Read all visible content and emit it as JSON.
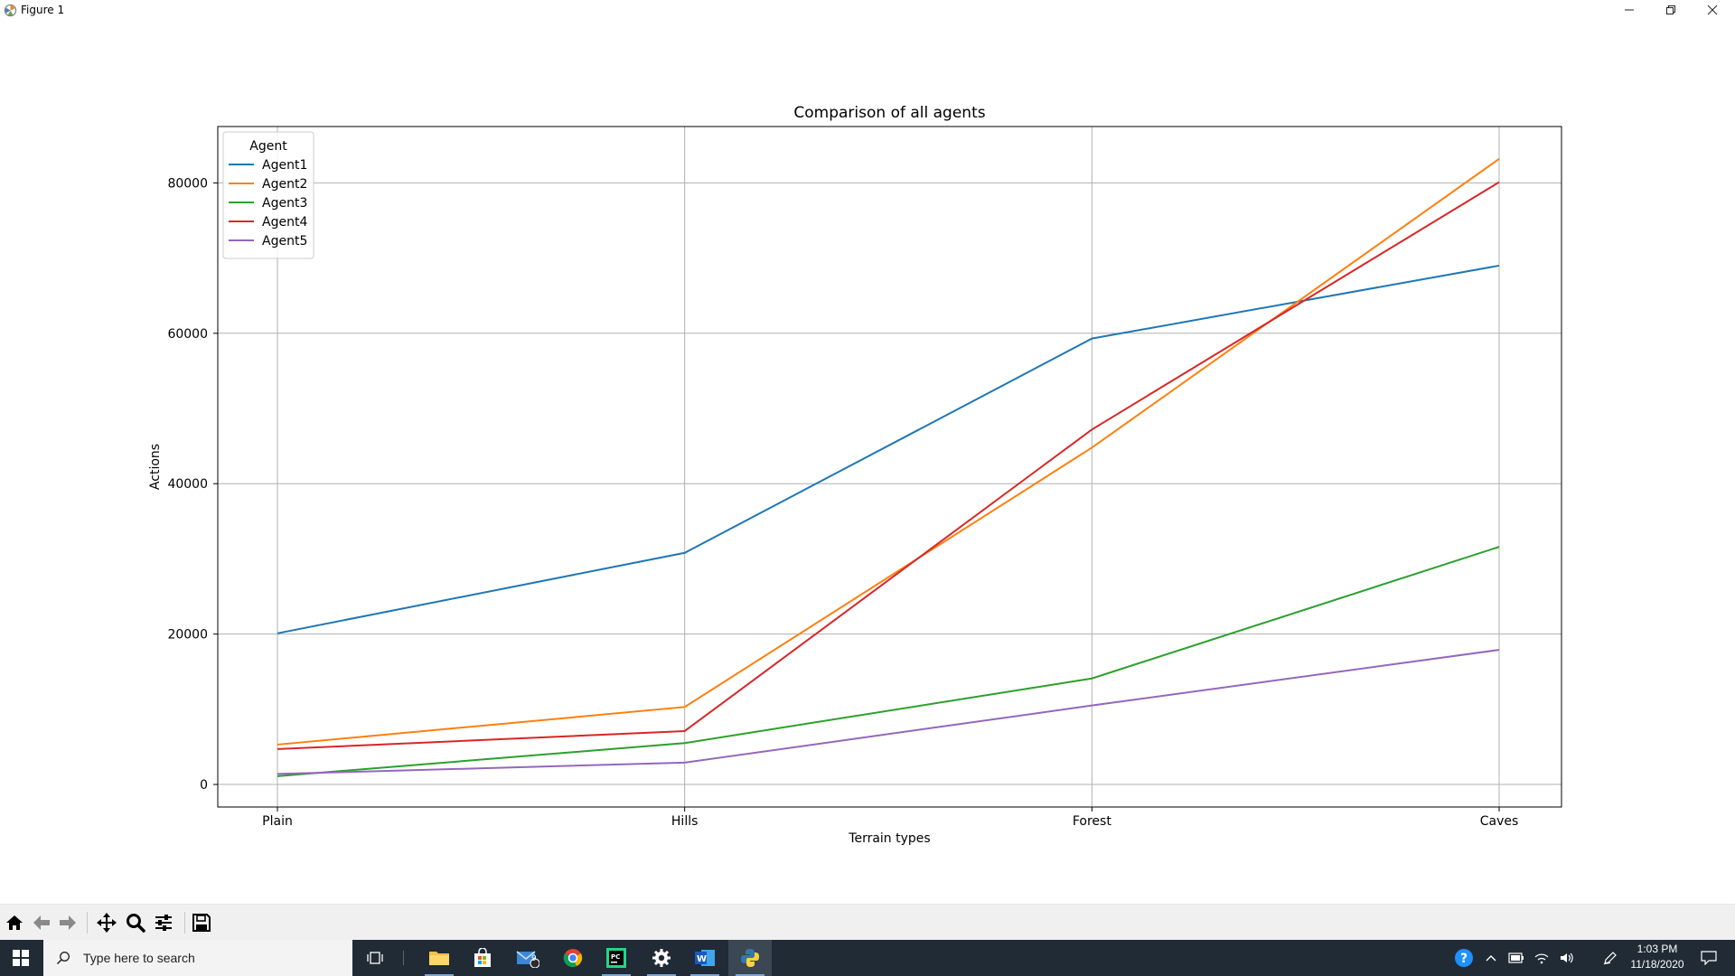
{
  "window": {
    "title": "Figure 1",
    "minimize_icon": "minimize-icon",
    "restore_icon": "restore-icon",
    "close_icon": "close-icon"
  },
  "chart_data": {
    "type": "line",
    "title": "Comparison of all agents",
    "xlabel": "Terrain types",
    "ylabel": "Actions",
    "categories": [
      "Plain",
      "Hills",
      "Forest",
      "Caves"
    ],
    "yticks": [
      0,
      20000,
      40000,
      60000,
      80000
    ],
    "ytick_labels": [
      "0",
      "20000",
      "40000",
      "60000",
      "80000"
    ],
    "ylim": [
      -3000,
      87500
    ],
    "grid": true,
    "legend": {
      "title": "Agent",
      "position": "top-left"
    },
    "series": [
      {
        "name": "Agent1",
        "color": "#1f77b4",
        "values": [
          20100,
          30800,
          59300,
          69000
        ]
      },
      {
        "name": "Agent2",
        "color": "#ff7f0e",
        "values": [
          5300,
          10300,
          44800,
          83200
        ]
      },
      {
        "name": "Agent3",
        "color": "#2ca02c",
        "values": [
          1100,
          5500,
          14100,
          31600
        ]
      },
      {
        "name": "Agent4",
        "color": "#d62728",
        "values": [
          4700,
          7100,
          47200,
          80100
        ]
      },
      {
        "name": "Agent5",
        "color": "#9467bd",
        "values": [
          1400,
          2900,
          10500,
          17900
        ]
      }
    ]
  },
  "toolbar": {
    "buttons": [
      "home-icon",
      "back-icon",
      "forward-icon",
      "pan-icon",
      "zoom-icon",
      "configure-icon",
      "save-icon"
    ]
  },
  "taskbar": {
    "search_placeholder": "Type here to search",
    "mail_badge": "9",
    "clock_time": "1:03 PM",
    "clock_date": "11/18/2020",
    "apps": [
      "task-view-icon",
      "file-explorer-icon",
      "store-icon",
      "mail-icon",
      "chrome-icon",
      "pycharm-icon",
      "settings-icon",
      "word-icon",
      "python-icon"
    ]
  }
}
